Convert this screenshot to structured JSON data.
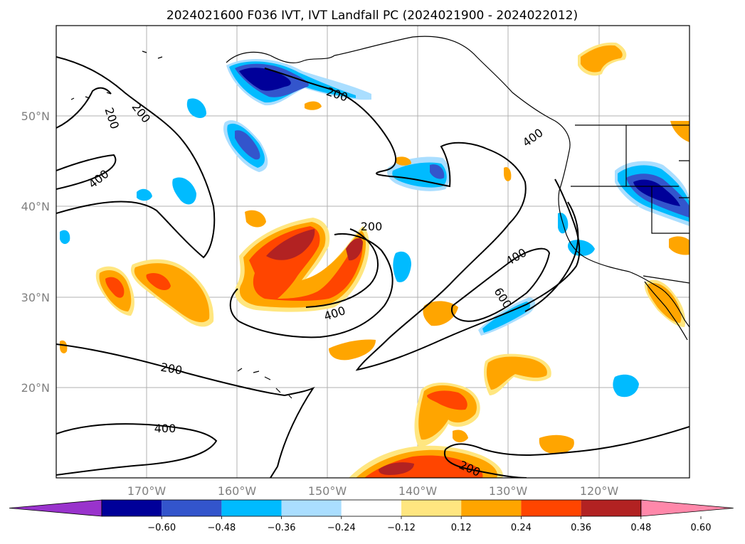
{
  "title": "2024021600 F036 IVT, IVT Landfall PC (2024021900 - 2024022012)",
  "map": {
    "lat_labels": [
      "50°N",
      "40°N",
      "30°N",
      "20°N"
    ],
    "lon_labels": [
      "170°W",
      "160°W",
      "150°W",
      "140°W",
      "130°W",
      "120°W"
    ],
    "gridlines": true
  },
  "contours": {
    "units_label_values": [
      "200",
      "200",
      "200",
      "400",
      "200",
      "400",
      "400",
      "600",
      "400",
      "200",
      "400",
      "200"
    ]
  },
  "colorbar": {
    "tick_labels": [
      "−0.60",
      "−0.48",
      "−0.36",
      "−0.24",
      "−0.12",
      "0.12",
      "0.24",
      "0.36",
      "0.48",
      "0.60"
    ],
    "colors": [
      "#9933cc",
      "#000099",
      "#3355cc",
      "#00bbff",
      "#aadeff",
      "#ffffff",
      "#ffe680",
      "#ffa500",
      "#ff4500",
      "#b22222",
      "#ff88aa"
    ],
    "extend": "both"
  }
}
